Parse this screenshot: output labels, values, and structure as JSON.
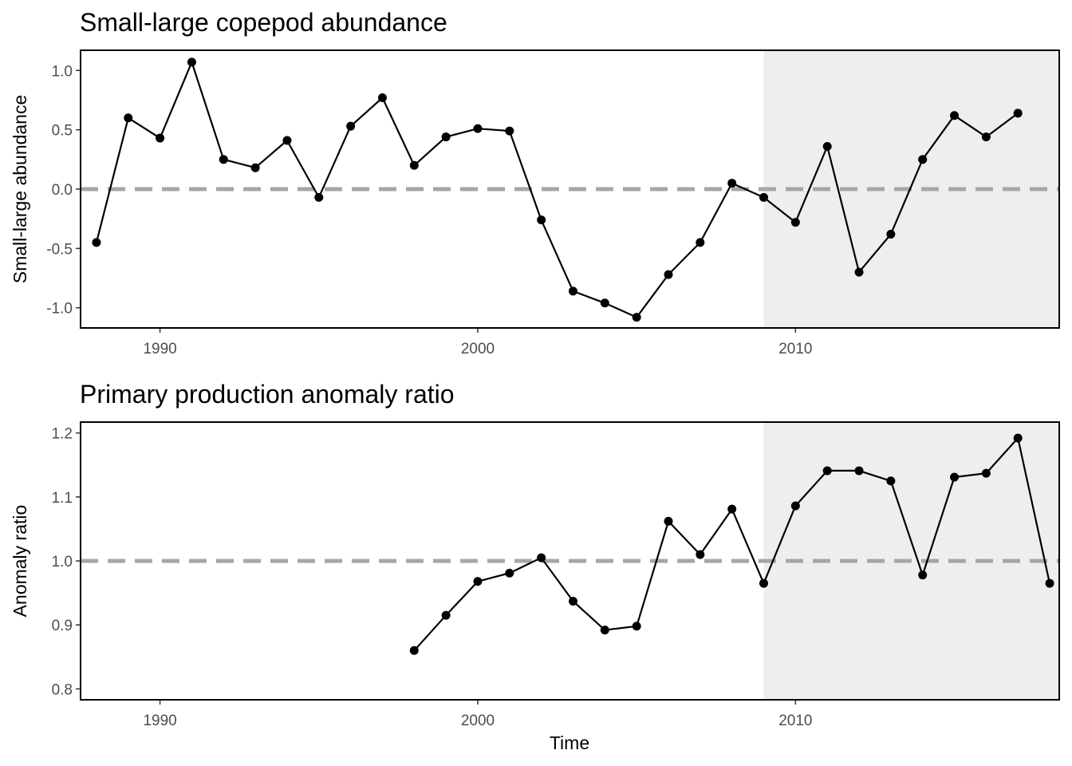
{
  "chart_data": [
    {
      "type": "line",
      "title": "Small-large copepod abundance",
      "xlabel": "",
      "ylabel": "Small-large abundance",
      "xlim": [
        1987.5,
        2018.3
      ],
      "ylim": [
        -1.17,
        1.17
      ],
      "xticks": [
        1990,
        2000,
        2010
      ],
      "yticks": [
        -1.0,
        -0.5,
        0.0,
        0.5,
        1.0
      ],
      "ytick_labels": [
        "-1.0",
        "-0.5",
        "0.0",
        "0.5",
        "1.0"
      ],
      "reference_line": 0.0,
      "shaded_region": [
        2009,
        2018.3
      ],
      "grid": false,
      "x": [
        1988,
        1989,
        1990,
        1991,
        1992,
        1993,
        1994,
        1995,
        1996,
        1997,
        1998,
        1999,
        2000,
        2001,
        2002,
        2003,
        2004,
        2005,
        2006,
        2007,
        2008,
        2009,
        2010,
        2011,
        2012,
        2013,
        2014,
        2015,
        2016,
        2017
      ],
      "y": [
        -0.45,
        0.6,
        0.43,
        1.07,
        0.25,
        0.18,
        0.41,
        -0.07,
        0.53,
        0.77,
        0.2,
        0.44,
        0.51,
        0.49,
        -0.26,
        -0.86,
        -0.96,
        -1.08,
        -0.72,
        -0.45,
        0.05,
        -0.07,
        -0.28,
        0.36,
        -0.7,
        -0.38,
        0.25,
        0.62,
        0.44,
        0.64
      ]
    },
    {
      "type": "line",
      "title": "Primary production anomaly ratio",
      "xlabel": "Time",
      "ylabel": "Anomaly ratio",
      "xlim": [
        1987.5,
        2018.3
      ],
      "ylim": [
        0.783,
        1.217
      ],
      "xticks": [
        1990,
        2000,
        2010
      ],
      "yticks": [
        0.8,
        0.9,
        1.0,
        1.1,
        1.2
      ],
      "ytick_labels": [
        "0.8",
        "0.9",
        "1.0",
        "1.1",
        "1.2"
      ],
      "reference_line": 1.0,
      "shaded_region": [
        2009,
        2018.3
      ],
      "grid": false,
      "x": [
        1998,
        1999,
        2000,
        2001,
        2002,
        2003,
        2004,
        2005,
        2006,
        2007,
        2008,
        2009,
        2010,
        2011,
        2012,
        2013,
        2014,
        2015,
        2016,
        2017,
        2018
      ],
      "y": [
        0.86,
        0.915,
        0.968,
        0.981,
        1.005,
        0.937,
        0.892,
        0.898,
        1.062,
        1.01,
        1.081,
        0.965,
        1.086,
        1.141,
        1.141,
        1.125,
        0.978,
        1.131,
        1.137,
        1.192,
        0.965
      ]
    }
  ]
}
